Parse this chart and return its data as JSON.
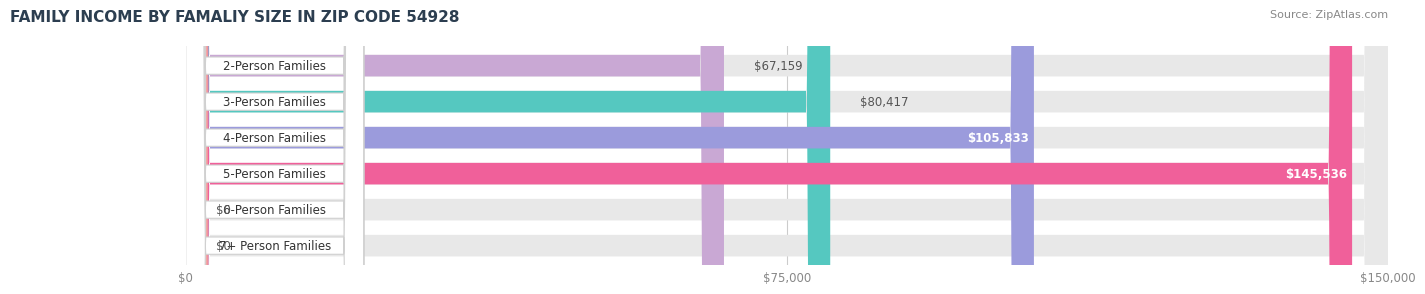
{
  "title": "FAMILY INCOME BY FAMALIY SIZE IN ZIP CODE 54928",
  "source": "Source: ZipAtlas.com",
  "categories": [
    "2-Person Families",
    "3-Person Families",
    "4-Person Families",
    "5-Person Families",
    "6-Person Families",
    "7+ Person Families"
  ],
  "values": [
    67159,
    80417,
    105833,
    145536,
    0,
    0
  ],
  "value_labels": [
    "$67,159",
    "$80,417",
    "$105,833",
    "$145,536",
    "$0",
    "$0"
  ],
  "bar_colors": [
    "#c9a8d4",
    "#55c8c0",
    "#9b9bdc",
    "#f0609a",
    "#f5c890",
    "#f0a8a8"
  ],
  "bar_bg_color": "#e8e8e8",
  "background_color": "#ffffff",
  "xlim": [
    0,
    150000
  ],
  "xticks": [
    0,
    75000,
    150000
  ],
  "xtick_labels": [
    "$0",
    "$75,000",
    "$150,000"
  ],
  "label_fontsize": 8.5,
  "title_fontsize": 11,
  "source_fontsize": 8,
  "title_color": "#2c3e50",
  "source_color": "#888888",
  "tick_color": "#888888"
}
